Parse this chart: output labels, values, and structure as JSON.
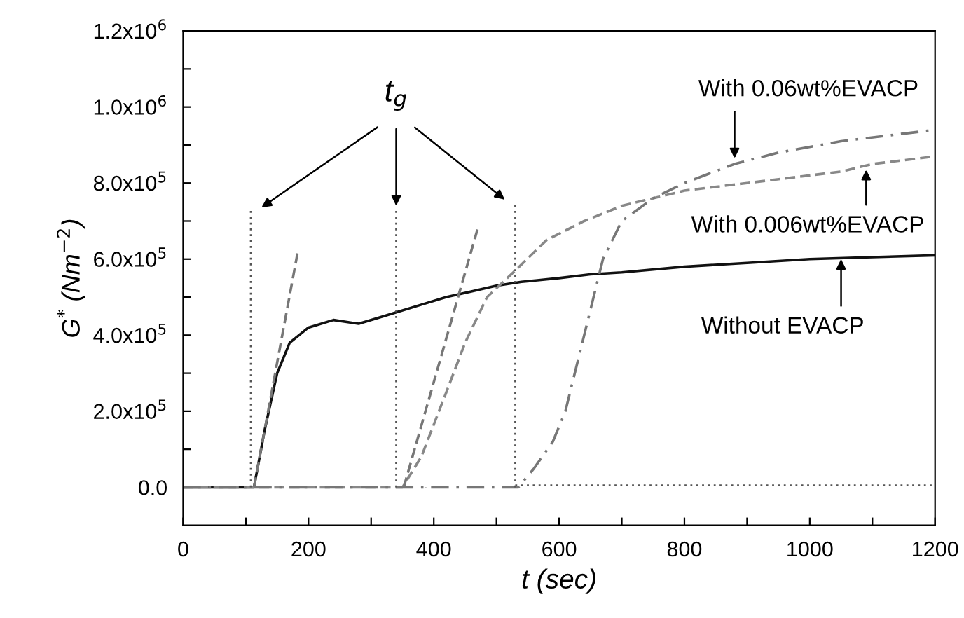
{
  "chart_data": {
    "type": "line",
    "xlabel": "t (sec)",
    "ylabel": "G$^{*}$ (Nm$^{−2}$)",
    "xlim": [
      0,
      1200
    ],
    "ylim": [
      -100000,
      1200000
    ],
    "xticks": [
      0,
      {
        "value": 100,
        "label": null
      },
      200,
      {
        "value": 300,
        "label": null
      },
      400,
      {
        "value": 500,
        "label": null
      },
      600,
      {
        "value": 700,
        "label": null
      },
      800,
      {
        "value": 900,
        "label": null
      },
      1000,
      {
        "value": 1100,
        "label": null
      },
      1200
    ],
    "yticks": [
      {
        "value": 0,
        "label": "0.0"
      },
      {
        "value": 100000,
        "label": null
      },
      {
        "value": 200000,
        "label": "2.0x10$^{5}$"
      },
      {
        "value": 300000,
        "label": null
      },
      {
        "value": 400000,
        "label": "4.0x10$^{5}$"
      },
      {
        "value": 500000,
        "label": null
      },
      {
        "value": 600000,
        "label": "6.0x10$^{5}$"
      },
      {
        "value": 700000,
        "label": null
      },
      {
        "value": 800000,
        "label": "8.0x10$^{5}$"
      },
      {
        "value": 900000,
        "label": null
      },
      {
        "value": 1000000,
        "label": "1.0x10$^{6}$"
      },
      {
        "value": 1100000,
        "label": null
      },
      {
        "value": 1200000,
        "label": "1.2x10$^{6}$"
      }
    ],
    "grid": false,
    "legend": false,
    "series": [
      {
        "color": "#111111",
        "line_style": "solid",
        "x": [
          0,
          113,
          130,
          150,
          170,
          200,
          240,
          280,
          320,
          340,
          380,
          420,
          460,
          500,
          540,
          600,
          650,
          700,
          800,
          900,
          1000,
          1100,
          1200
        ],
        "values": [
          0,
          0,
          150000,
          300000,
          380000,
          420000,
          440000,
          430000,
          450000,
          460000,
          480000,
          500000,
          515000,
          530000,
          540000,
          550000,
          560000,
          565000,
          580000,
          590000,
          600000,
          605000,
          610000
        ]
      },
      {
        "color": "#888888",
        "line_style": "dashed",
        "x": [
          0,
          350,
          380,
          420,
          450,
          485,
          530,
          580,
          640,
          700,
          750,
          800,
          900,
          1000,
          1050,
          1100,
          1200
        ],
        "values": [
          0,
          0,
          80000,
          250000,
          380000,
          500000,
          570000,
          650000,
          700000,
          740000,
          760000,
          780000,
          800000,
          820000,
          830000,
          850000,
          870000
        ]
      },
      {
        "color": "#777777",
        "line_style": "dashdot",
        "x": [
          0,
          535,
          560,
          590,
          610,
          640,
          670,
          700,
          750,
          800,
          880,
          950,
          1050,
          1200
        ],
        "values": [
          0,
          0,
          50000,
          120000,
          200000,
          400000,
          600000,
          700000,
          760000,
          800000,
          850000,
          880000,
          910000,
          940000
        ]
      },
      {
        "color": "#555555",
        "line_style": "dotted",
        "x": [
          530,
          1200
        ],
        "values": [
          5000,
          5000
        ]
      },
      {
        "color": "#555555",
        "line_style": "dotted",
        "x": [
          108,
          108
        ],
        "values": [
          0,
          730000
        ]
      },
      {
        "color": "#555555",
        "line_style": "dotted",
        "x": [
          340,
          340
        ],
        "values": [
          0,
          730000
        ]
      },
      {
        "color": "#555555",
        "line_style": "dotted",
        "x": [
          530,
          530
        ],
        "values": [
          0,
          750000
        ]
      },
      {
        "color": "#777777",
        "line_style": "dashed",
        "x": [
          113,
          183
        ],
        "values": [
          0,
          620000
        ]
      },
      {
        "color": "#777777",
        "line_style": "dashed",
        "x": [
          352,
          470
        ],
        "values": [
          0,
          680000
        ]
      }
    ],
    "annotations": [
      {
        "text": "With 0.06wt%EVACP",
        "x": 880,
        "y": 860000
      },
      {
        "text": "With 0.006wt%EVACP",
        "x": 1090,
        "y": 840000
      },
      {
        "text": "Without EVACP",
        "x": 1050,
        "y": 605000
      },
      "t$_{g}$"
    ]
  }
}
